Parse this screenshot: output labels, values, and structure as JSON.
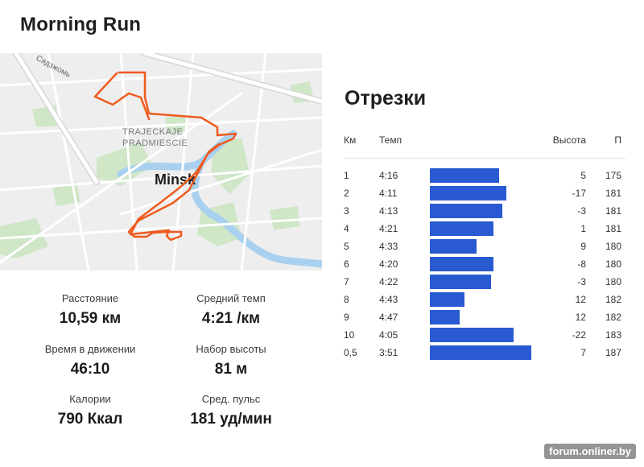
{
  "activity": {
    "title": "Morning Run"
  },
  "map": {
    "street_label": "Сядзжомь",
    "district_line1": "TRAJECKAJE",
    "district_line2": "PRADMIESCIE",
    "city_label": "Minsk",
    "route_color": "#ef5a1e"
  },
  "stats": [
    {
      "label": "Расстояние",
      "value": "10,59 км"
    },
    {
      "label": "Средний темп",
      "value": "4:21 /км"
    },
    {
      "label": "Время в движении",
      "value": "46:10"
    },
    {
      "label": "Набор высоты",
      "value": "81 м"
    },
    {
      "label": "Калории",
      "value": "790 Ккал"
    },
    {
      "label": "Сред. пульс",
      "value": "181 уд/мин"
    }
  ],
  "splits": {
    "title": "Отрезки",
    "columns": {
      "km": "Км",
      "pace": "Темп",
      "elevation": "Высота",
      "cadence": "П"
    },
    "rows": [
      {
        "km": "1",
        "pace": "4:16",
        "elevation": "5",
        "cadence": "175",
        "bar_fraction": 0.68
      },
      {
        "km": "2",
        "pace": "4:11",
        "elevation": "-17",
        "cadence": "181",
        "bar_fraction": 0.75
      },
      {
        "km": "3",
        "pace": "4:13",
        "elevation": "-3",
        "cadence": "181",
        "bar_fraction": 0.71
      },
      {
        "km": "4",
        "pace": "4:21",
        "elevation": "1",
        "cadence": "181",
        "bar_fraction": 0.62
      },
      {
        "km": "5",
        "pace": "4:33",
        "elevation": "9",
        "cadence": "180",
        "bar_fraction": 0.46
      },
      {
        "km": "6",
        "pace": "4:20",
        "elevation": "-8",
        "cadence": "180",
        "bar_fraction": 0.62
      },
      {
        "km": "7",
        "pace": "4:22",
        "elevation": "-3",
        "cadence": "180",
        "bar_fraction": 0.6
      },
      {
        "km": "8",
        "pace": "4:43",
        "elevation": "12",
        "cadence": "182",
        "bar_fraction": 0.34
      },
      {
        "km": "9",
        "pace": "4:47",
        "elevation": "12",
        "cadence": "182",
        "bar_fraction": 0.29
      },
      {
        "km": "10",
        "pace": "4:05",
        "elevation": "-22",
        "cadence": "183",
        "bar_fraction": 0.82
      },
      {
        "km": "0,5",
        "pace": "3:51",
        "elevation": "7",
        "cadence": "187",
        "bar_fraction": 0.99
      }
    ],
    "bar_color": "#2a5ad1"
  },
  "watermark": "forum.onliner.by"
}
